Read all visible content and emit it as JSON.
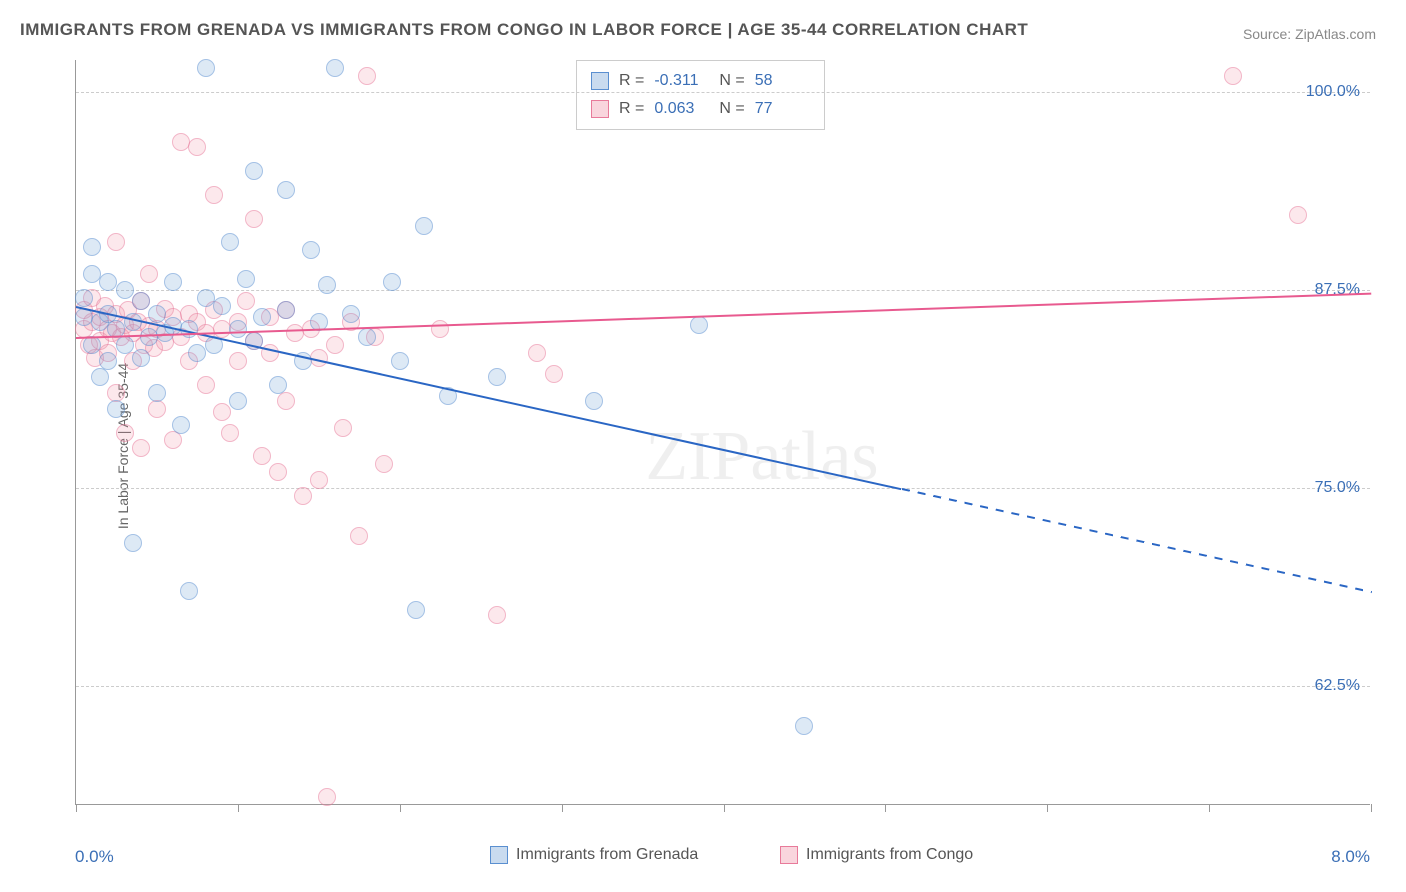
{
  "title": "IMMIGRANTS FROM GRENADA VS IMMIGRANTS FROM CONGO IN LABOR FORCE | AGE 35-44 CORRELATION CHART",
  "source_label": "Source:",
  "source_name": "ZipAtlas.com",
  "watermark": "ZIPatlas",
  "chart": {
    "type": "scatter",
    "ylabel": "In Labor Force | Age 35-44",
    "x_min": 0.0,
    "x_max": 8.0,
    "y_min": 55.0,
    "y_max": 102.0,
    "x_start_label": "0.0%",
    "x_end_label": "8.0%",
    "y_ticks": [
      62.5,
      75.0,
      87.5,
      100.0
    ],
    "y_tick_labels": [
      "62.5%",
      "75.0%",
      "87.5%",
      "100.0%"
    ],
    "x_tick_positions": [
      0.0,
      1.0,
      2.0,
      3.0,
      4.0,
      5.0,
      6.0,
      7.0,
      8.0
    ],
    "grid_color": "#cccccc",
    "background_color": "#ffffff",
    "label_fontsize": 14,
    "tick_fontsize": 16
  },
  "series": {
    "grenada": {
      "label": "Immigrants from Grenada",
      "color_fill": "rgba(120,165,216,0.45)",
      "color_stroke": "#5a8fd0",
      "line_color": "#2a66c4",
      "R": "-0.311",
      "N": "58",
      "regression": {
        "x1": 0.0,
        "y1": 86.5,
        "x2_solid": 5.1,
        "y2_solid": 75.0,
        "x2_dash": 8.0,
        "y2_dash": 68.5
      },
      "points": [
        [
          0.05,
          85.8
        ],
        [
          0.05,
          87.0
        ],
        [
          0.1,
          84.0
        ],
        [
          0.1,
          88.5
        ],
        [
          0.1,
          90.2
        ],
        [
          0.15,
          82.0
        ],
        [
          0.15,
          85.5
        ],
        [
          0.2,
          86.0
        ],
        [
          0.2,
          88.0
        ],
        [
          0.2,
          83.0
        ],
        [
          0.25,
          80.0
        ],
        [
          0.25,
          85.0
        ],
        [
          0.3,
          84.0
        ],
        [
          0.3,
          87.5
        ],
        [
          0.35,
          71.5
        ],
        [
          0.35,
          85.5
        ],
        [
          0.4,
          86.8
        ],
        [
          0.4,
          83.2
        ],
        [
          0.45,
          84.5
        ],
        [
          0.5,
          81.0
        ],
        [
          0.5,
          86.0
        ],
        [
          0.55,
          84.8
        ],
        [
          0.6,
          85.2
        ],
        [
          0.6,
          88.0
        ],
        [
          0.65,
          79.0
        ],
        [
          0.7,
          68.5
        ],
        [
          0.7,
          85.0
        ],
        [
          0.75,
          83.5
        ],
        [
          0.8,
          87.0
        ],
        [
          0.8,
          101.5
        ],
        [
          0.85,
          84.0
        ],
        [
          0.9,
          86.5
        ],
        [
          0.95,
          90.5
        ],
        [
          1.0,
          85.0
        ],
        [
          1.0,
          80.5
        ],
        [
          1.05,
          88.2
        ],
        [
          1.1,
          84.3
        ],
        [
          1.1,
          95.0
        ],
        [
          1.15,
          85.8
        ],
        [
          1.25,
          81.5
        ],
        [
          1.3,
          93.8
        ],
        [
          1.3,
          86.2
        ],
        [
          1.4,
          83.0
        ],
        [
          1.45,
          90.0
        ],
        [
          1.5,
          85.5
        ],
        [
          1.55,
          87.8
        ],
        [
          1.6,
          101.5
        ],
        [
          1.7,
          86.0
        ],
        [
          1.8,
          84.5
        ],
        [
          1.95,
          88.0
        ],
        [
          2.0,
          83.0
        ],
        [
          2.1,
          67.3
        ],
        [
          2.15,
          91.5
        ],
        [
          2.3,
          80.8
        ],
        [
          2.6,
          82.0
        ],
        [
          3.2,
          80.5
        ],
        [
          3.85,
          85.3
        ],
        [
          4.5,
          60.0
        ]
      ]
    },
    "congo": {
      "label": "Immigrants from Congo",
      "color_fill": "rgba(240,150,170,0.40)",
      "color_stroke": "#e87a9a",
      "line_color": "#e85a8f",
      "R": "0.063",
      "N": "77",
      "regression": {
        "x1": 0.0,
        "y1": 84.5,
        "x2_solid": 8.0,
        "y2_solid": 87.3
      },
      "points": [
        [
          0.05,
          85.0
        ],
        [
          0.05,
          86.2
        ],
        [
          0.08,
          84.0
        ],
        [
          0.1,
          85.5
        ],
        [
          0.1,
          87.0
        ],
        [
          0.12,
          83.2
        ],
        [
          0.15,
          85.8
        ],
        [
          0.15,
          84.3
        ],
        [
          0.18,
          86.5
        ],
        [
          0.2,
          85.0
        ],
        [
          0.2,
          83.5
        ],
        [
          0.22,
          84.8
        ],
        [
          0.25,
          86.0
        ],
        [
          0.25,
          81.0
        ],
        [
          0.25,
          90.5
        ],
        [
          0.28,
          84.5
        ],
        [
          0.3,
          85.3
        ],
        [
          0.3,
          78.5
        ],
        [
          0.32,
          86.2
        ],
        [
          0.35,
          84.8
        ],
        [
          0.35,
          83.0
        ],
        [
          0.38,
          85.5
        ],
        [
          0.4,
          86.8
        ],
        [
          0.4,
          77.5
        ],
        [
          0.42,
          84.0
        ],
        [
          0.45,
          85.2
        ],
        [
          0.45,
          88.5
        ],
        [
          0.48,
          83.8
        ],
        [
          0.5,
          85.0
        ],
        [
          0.5,
          80.0
        ],
        [
          0.55,
          86.3
        ],
        [
          0.55,
          84.2
        ],
        [
          0.6,
          85.8
        ],
        [
          0.6,
          78.0
        ],
        [
          0.65,
          84.5
        ],
        [
          0.65,
          96.8
        ],
        [
          0.7,
          86.0
        ],
        [
          0.7,
          83.0
        ],
        [
          0.75,
          85.5
        ],
        [
          0.75,
          96.5
        ],
        [
          0.8,
          84.8
        ],
        [
          0.8,
          81.5
        ],
        [
          0.85,
          86.2
        ],
        [
          0.85,
          93.5
        ],
        [
          0.9,
          85.0
        ],
        [
          0.9,
          79.8
        ],
        [
          0.95,
          78.5
        ],
        [
          1.0,
          85.5
        ],
        [
          1.0,
          83.0
        ],
        [
          1.05,
          86.8
        ],
        [
          1.1,
          84.3
        ],
        [
          1.1,
          92.0
        ],
        [
          1.15,
          77.0
        ],
        [
          1.2,
          85.8
        ],
        [
          1.2,
          83.5
        ],
        [
          1.25,
          76.0
        ],
        [
          1.3,
          86.2
        ],
        [
          1.3,
          80.5
        ],
        [
          1.35,
          84.8
        ],
        [
          1.4,
          74.5
        ],
        [
          1.45,
          85.0
        ],
        [
          1.5,
          75.5
        ],
        [
          1.5,
          83.2
        ],
        [
          1.55,
          55.5
        ],
        [
          1.6,
          84.0
        ],
        [
          1.65,
          78.8
        ],
        [
          1.7,
          85.5
        ],
        [
          1.75,
          72.0
        ],
        [
          1.8,
          101.0
        ],
        [
          1.85,
          84.5
        ],
        [
          1.9,
          76.5
        ],
        [
          2.25,
          85.0
        ],
        [
          2.6,
          67.0
        ],
        [
          2.85,
          83.5
        ],
        [
          2.95,
          82.2
        ],
        [
          7.15,
          101.0
        ],
        [
          7.55,
          92.2
        ]
      ]
    }
  },
  "stats_labels": {
    "R": "R =",
    "N": "N ="
  }
}
